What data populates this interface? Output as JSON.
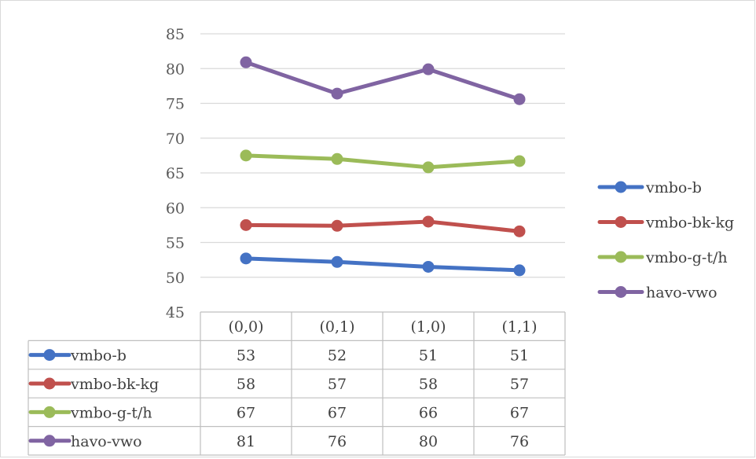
{
  "chart_data": {
    "type": "line",
    "title": "",
    "xlabel": "",
    "ylabel": "",
    "ylim": [
      45,
      85
    ],
    "yticks": [
      45,
      50,
      55,
      60,
      65,
      70,
      75,
      80,
      85
    ],
    "grid": true,
    "legend_position": "right",
    "categories": [
      "(0,0)",
      "(0,1)",
      "(1,0)",
      "(1,1)"
    ],
    "series": [
      {
        "name": "vmbo-b",
        "color": "#4472c4",
        "values": [
          52.7,
          52.2,
          51.5,
          51.0
        ],
        "table_values": [
          "53",
          "52",
          "51",
          "51"
        ]
      },
      {
        "name": "vmbo-bk-kg",
        "color": "#c0504d",
        "values": [
          57.5,
          57.4,
          58.0,
          56.6
        ],
        "table_values": [
          "58",
          "57",
          "58",
          "57"
        ]
      },
      {
        "name": "vmbo-g-t/h",
        "color": "#9bbb59",
        "values": [
          67.5,
          67.0,
          65.8,
          66.7
        ],
        "table_values": [
          "67",
          "67",
          "66",
          "67"
        ]
      },
      {
        "name": "havo-vwo",
        "color": "#8064a2",
        "values": [
          80.9,
          76.4,
          79.9,
          75.6
        ],
        "table_values": [
          "81",
          "76",
          "80",
          "76"
        ]
      }
    ],
    "data_table": true
  }
}
